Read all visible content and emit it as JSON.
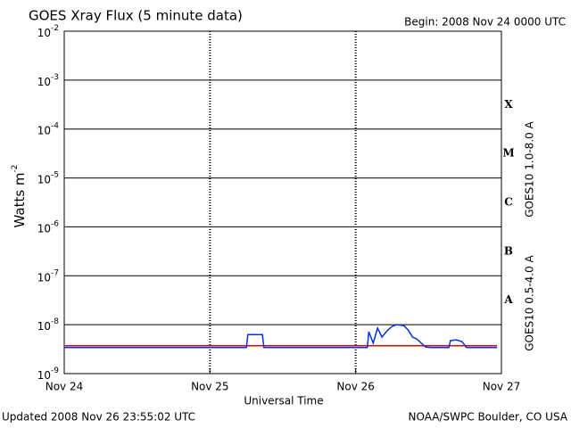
{
  "chart_data": {
    "type": "line",
    "title": "GOES Xray Flux (5 minute data)",
    "subtitle": "Begin:  2008 Nov 24 0000 UTC",
    "x_label": "Universal Time",
    "y_label": "Watts m",
    "y_label_exponent": "-2",
    "footer_left": "Updated 2008 Nov 26 23:55:02 UTC",
    "footer_right": "NOAA/SWPC Boulder, CO USA",
    "log_y": true,
    "grid": true,
    "xlim": [
      0,
      3
    ],
    "xticks": [
      {
        "value": 0,
        "label": "Nov 24"
      },
      {
        "value": 1,
        "label": "Nov 25"
      },
      {
        "value": 2,
        "label": "Nov 26"
      },
      {
        "value": 3,
        "label": "Nov 27"
      }
    ],
    "ylim": [
      1e-09,
      0.01
    ],
    "yticks": [
      {
        "value": 1e-09,
        "label": "10",
        "exponent": "-9"
      },
      {
        "value": 1e-08,
        "label": "10",
        "exponent": "-8"
      },
      {
        "value": 1e-07,
        "label": "10",
        "exponent": "-7"
      },
      {
        "value": 1e-06,
        "label": "10",
        "exponent": "-6"
      },
      {
        "value": 1e-05,
        "label": "10",
        "exponent": "-5"
      },
      {
        "value": 0.0001,
        "label": "10",
        "exponent": "-4"
      },
      {
        "value": 0.001,
        "label": "10",
        "exponent": "-3"
      },
      {
        "value": 0.01,
        "label": "10",
        "exponent": "-2"
      }
    ],
    "flare_classes": [
      {
        "label": "A",
        "value": 1e-08
      },
      {
        "label": "B",
        "value": 1e-07
      },
      {
        "label": "C",
        "value": 1e-06
      },
      {
        "label": "M",
        "value": 1e-05
      },
      {
        "label": "X",
        "value": 0.0001
      }
    ],
    "series": [
      {
        "name": "GOES10 1.0-8.0 A",
        "color": "#e00000",
        "x": [
          0,
          2.97
        ],
        "values": [
          3.7e-09,
          3.7e-09
        ]
      },
      {
        "name": "GOES10 0.5-4.0 A",
        "color": "#0030e0",
        "x": [
          0,
          1.25,
          1.26,
          1.36,
          1.37,
          2.08,
          2.09,
          2.12,
          2.15,
          2.18,
          2.22,
          2.25,
          2.28,
          2.33,
          2.36,
          2.39,
          2.42,
          2.45,
          2.48,
          2.51,
          2.64,
          2.65,
          2.69,
          2.73,
          2.76,
          2.97
        ],
        "values": [
          3.4e-09,
          3.4e-09,
          6.3e-09,
          6.3e-09,
          3.4e-09,
          3.4e-09,
          7.2e-09,
          4.2e-09,
          8.5e-09,
          5.6e-09,
          7.8e-09,
          9.2e-09,
          1e-08,
          9.6e-09,
          7.8e-09,
          5.6e-09,
          5.1e-09,
          4.2e-09,
          3.5e-09,
          3.4e-09,
          3.4e-09,
          4.7e-09,
          4.9e-09,
          4.5e-09,
          3.4e-09,
          3.4e-09
        ]
      }
    ]
  }
}
